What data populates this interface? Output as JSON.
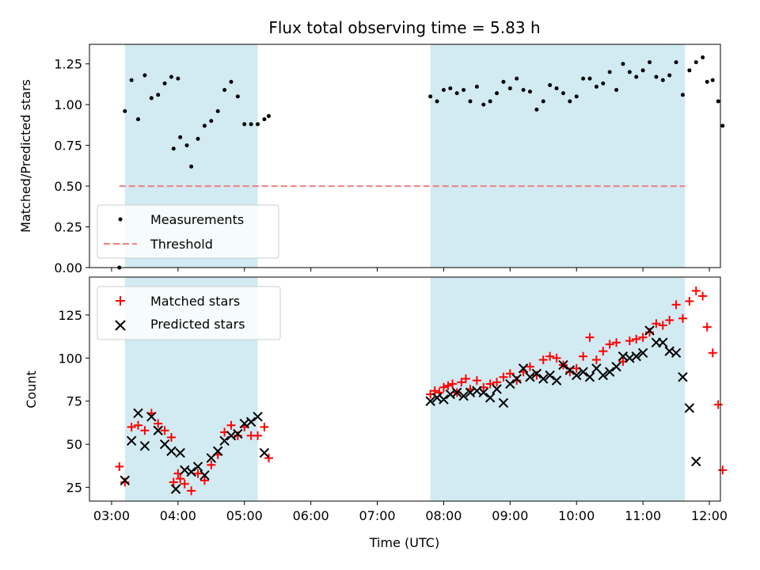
{
  "chart_data": [
    {
      "type": "scatter",
      "title": "Flux total observing time = 5.83 h",
      "xlabel": "",
      "ylabel": "Matched/Predicted stars",
      "xlim": [
        "02:40",
        "12:10"
      ],
      "ylim": [
        0,
        1.37
      ],
      "x_ticks": [
        "03:00",
        "04:00",
        "05:00",
        "06:00",
        "07:00",
        "08:00",
        "09:00",
        "10:00",
        "11:00",
        "12:00"
      ],
      "y_ticks": [
        "0.00",
        "0.25",
        "0.50",
        "0.75",
        "1.00",
        "1.25"
      ],
      "shaded_spans": [
        [
          "03:12",
          "05:12"
        ],
        [
          "07:48",
          "11:38"
        ]
      ],
      "shade_color": "#add8e6",
      "legend_position": "lower-left",
      "series": [
        {
          "name": "Measurements",
          "kind": "points",
          "color": "#000000",
          "points": [
            [
              "03:07",
              0.0
            ],
            [
              "03:12",
              0.96
            ],
            [
              "03:18",
              1.15
            ],
            [
              "03:24",
              0.91
            ],
            [
              "03:30",
              1.18
            ],
            [
              "03:36",
              1.04
            ],
            [
              "03:42",
              1.06
            ],
            [
              "03:48",
              1.13
            ],
            [
              "03:54",
              1.17
            ],
            [
              "04:00",
              1.16
            ],
            [
              "03:56",
              0.73
            ],
            [
              "04:02",
              0.8
            ],
            [
              "04:08",
              0.75
            ],
            [
              "04:12",
              0.62
            ],
            [
              "04:18",
              0.79
            ],
            [
              "04:24",
              0.87
            ],
            [
              "04:30",
              0.9
            ],
            [
              "04:36",
              0.96
            ],
            [
              "04:42",
              1.09
            ],
            [
              "04:48",
              1.14
            ],
            [
              "04:54",
              1.05
            ],
            [
              "05:00",
              0.88
            ],
            [
              "05:06",
              0.88
            ],
            [
              "05:12",
              0.88
            ],
            [
              "05:18",
              0.91
            ],
            [
              "05:22",
              0.93
            ],
            [
              "07:48",
              1.05
            ],
            [
              "07:54",
              1.02
            ],
            [
              "08:00",
              1.09
            ],
            [
              "08:06",
              1.1
            ],
            [
              "08:12",
              1.07
            ],
            [
              "08:18",
              1.09
            ],
            [
              "08:24",
              1.02
            ],
            [
              "08:30",
              1.11
            ],
            [
              "08:36",
              1.0
            ],
            [
              "08:42",
              1.02
            ],
            [
              "08:48",
              1.07
            ],
            [
              "08:54",
              1.14
            ],
            [
              "09:00",
              1.1
            ],
            [
              "09:06",
              1.16
            ],
            [
              "09:12",
              1.09
            ],
            [
              "09:18",
              1.08
            ],
            [
              "09:24",
              0.97
            ],
            [
              "09:30",
              1.02
            ],
            [
              "09:36",
              1.12
            ],
            [
              "09:42",
              1.1
            ],
            [
              "09:48",
              1.07
            ],
            [
              "09:54",
              1.02
            ],
            [
              "10:00",
              1.05
            ],
            [
              "10:06",
              1.16
            ],
            [
              "10:12",
              1.16
            ],
            [
              "10:18",
              1.11
            ],
            [
              "10:24",
              1.13
            ],
            [
              "10:30",
              1.2
            ],
            [
              "10:36",
              1.09
            ],
            [
              "10:42",
              1.25
            ],
            [
              "10:48",
              1.2
            ],
            [
              "10:54",
              1.17
            ],
            [
              "11:00",
              1.21
            ],
            [
              "11:06",
              1.26
            ],
            [
              "11:12",
              1.17
            ],
            [
              "11:18",
              1.15
            ],
            [
              "11:24",
              1.18
            ],
            [
              "11:30",
              1.26
            ],
            [
              "11:36",
              1.06
            ],
            [
              "11:42",
              1.21
            ],
            [
              "11:48",
              1.26
            ],
            [
              "11:54",
              1.29
            ],
            [
              "11:58",
              1.14
            ],
            [
              "12:03",
              1.15
            ],
            [
              "12:08",
              1.02
            ],
            [
              "12:12",
              0.87
            ]
          ]
        },
        {
          "name": "Threshold",
          "kind": "dashed-line",
          "color": "#f08080",
          "x": [
            "03:07",
            "11:38"
          ],
          "y": [
            0.5,
            0.5
          ]
        }
      ]
    },
    {
      "type": "scatter",
      "title": "",
      "xlabel": "Time (UTC)",
      "ylabel": "Count",
      "xlim": [
        "02:40",
        "12:10"
      ],
      "ylim": [
        17,
        147
      ],
      "x_ticks": [
        "03:00",
        "04:00",
        "05:00",
        "06:00",
        "07:00",
        "08:00",
        "09:00",
        "10:00",
        "11:00",
        "12:00"
      ],
      "y_ticks": [
        "25",
        "50",
        "75",
        "100",
        "125"
      ],
      "shaded_spans": [
        [
          "03:12",
          "05:12"
        ],
        [
          "07:48",
          "11:38"
        ]
      ],
      "shade_color": "#add8e6",
      "legend_position": "upper-left",
      "series": [
        {
          "name": "Matched stars",
          "marker": "plus",
          "color": "#ff0000",
          "points": [
            [
              "03:07",
              37
            ],
            [
              "03:12",
              28
            ],
            [
              "03:18",
              60
            ],
            [
              "03:24",
              61
            ],
            [
              "03:30",
              58
            ],
            [
              "03:36",
              68
            ],
            [
              "03:42",
              62
            ],
            [
              "03:48",
              58
            ],
            [
              "03:54",
              54
            ],
            [
              "03:56",
              28
            ],
            [
              "04:00",
              33
            ],
            [
              "04:02",
              30
            ],
            [
              "04:06",
              27
            ],
            [
              "04:12",
              23
            ],
            [
              "04:18",
              33
            ],
            [
              "04:24",
              29
            ],
            [
              "04:30",
              38
            ],
            [
              "04:36",
              44
            ],
            [
              "04:42",
              57
            ],
            [
              "04:48",
              61
            ],
            [
              "04:54",
              55
            ],
            [
              "05:00",
              60
            ],
            [
              "05:06",
              55
            ],
            [
              "05:12",
              55
            ],
            [
              "05:18",
              60
            ],
            [
              "05:22",
              42
            ],
            [
              "07:48",
              79
            ],
            [
              "07:52",
              81
            ],
            [
              "07:56",
              80
            ],
            [
              "08:00",
              83
            ],
            [
              "08:04",
              84
            ],
            [
              "08:08",
              85
            ],
            [
              "08:12",
              80
            ],
            [
              "08:16",
              86
            ],
            [
              "08:20",
              88
            ],
            [
              "08:24",
              82
            ],
            [
              "08:30",
              87
            ],
            [
              "08:36",
              83
            ],
            [
              "08:42",
              85
            ],
            [
              "08:48",
              86
            ],
            [
              "08:54",
              89
            ],
            [
              "09:00",
              91
            ],
            [
              "09:06",
              87
            ],
            [
              "09:12",
              92
            ],
            [
              "09:18",
              95
            ],
            [
              "09:24",
              90
            ],
            [
              "09:30",
              99
            ],
            [
              "09:36",
              101
            ],
            [
              "09:42",
              100
            ],
            [
              "09:48",
              96
            ],
            [
              "09:54",
              92
            ],
            [
              "10:00",
              94
            ],
            [
              "10:06",
              101
            ],
            [
              "10:12",
              112
            ],
            [
              "10:18",
              99
            ],
            [
              "10:24",
              104
            ],
            [
              "10:30",
              108
            ],
            [
              "10:36",
              109
            ],
            [
              "10:42",
              98
            ],
            [
              "10:48",
              110
            ],
            [
              "10:54",
              111
            ],
            [
              "11:00",
              112
            ],
            [
              "11:06",
              115
            ],
            [
              "11:12",
              120
            ],
            [
              "11:18",
              119
            ],
            [
              "11:24",
              122
            ],
            [
              "11:30",
              131
            ],
            [
              "11:36",
              123
            ],
            [
              "11:42",
              133
            ],
            [
              "11:48",
              139
            ],
            [
              "11:54",
              136
            ],
            [
              "11:58",
              118
            ],
            [
              "12:03",
              103
            ],
            [
              "12:08",
              73
            ],
            [
              "12:12",
              35
            ]
          ]
        },
        {
          "name": "Predicted stars",
          "marker": "x",
          "color": "#000000",
          "points": [
            [
              "03:12",
              29
            ],
            [
              "03:18",
              52
            ],
            [
              "03:24",
              68
            ],
            [
              "03:30",
              49
            ],
            [
              "03:36",
              66
            ],
            [
              "03:42",
              58
            ],
            [
              "03:48",
              50
            ],
            [
              "03:54",
              46
            ],
            [
              "03:58",
              24
            ],
            [
              "04:02",
              45
            ],
            [
              "04:06",
              35
            ],
            [
              "04:12",
              34
            ],
            [
              "04:18",
              37
            ],
            [
              "04:24",
              32
            ],
            [
              "04:30",
              42
            ],
            [
              "04:36",
              46
            ],
            [
              "04:42",
              52
            ],
            [
              "04:48",
              55
            ],
            [
              "04:54",
              56
            ],
            [
              "05:00",
              62
            ],
            [
              "05:06",
              63
            ],
            [
              "05:12",
              66
            ],
            [
              "05:18",
              45
            ],
            [
              "07:48",
              75
            ],
            [
              "07:54",
              77
            ],
            [
              "08:00",
              76
            ],
            [
              "08:06",
              79
            ],
            [
              "08:12",
              80
            ],
            [
              "08:18",
              78
            ],
            [
              "08:24",
              80
            ],
            [
              "08:30",
              81
            ],
            [
              "08:36",
              80
            ],
            [
              "08:42",
              77
            ],
            [
              "08:48",
              82
            ],
            [
              "08:54",
              74
            ],
            [
              "09:00",
              85
            ],
            [
              "09:06",
              88
            ],
            [
              "09:12",
              94
            ],
            [
              "09:18",
              89
            ],
            [
              "09:24",
              91
            ],
            [
              "09:30",
              88
            ],
            [
              "09:36",
              90
            ],
            [
              "09:42",
              87
            ],
            [
              "09:48",
              96
            ],
            [
              "09:54",
              93
            ],
            [
              "10:00",
              90
            ],
            [
              "10:06",
              92
            ],
            [
              "10:12",
              89
            ],
            [
              "10:18",
              94
            ],
            [
              "10:24",
              90
            ],
            [
              "10:30",
              92
            ],
            [
              "10:36",
              95
            ],
            [
              "10:42",
              101
            ],
            [
              "10:48",
              100
            ],
            [
              "10:54",
              101
            ],
            [
              "11:00",
              103
            ],
            [
              "11:06",
              116
            ],
            [
              "11:12",
              109
            ],
            [
              "11:18",
              109
            ],
            [
              "11:24",
              104
            ],
            [
              "11:30",
              103
            ],
            [
              "11:36",
              89
            ],
            [
              "11:42",
              71
            ],
            [
              "11:48",
              40
            ]
          ]
        }
      ]
    }
  ]
}
